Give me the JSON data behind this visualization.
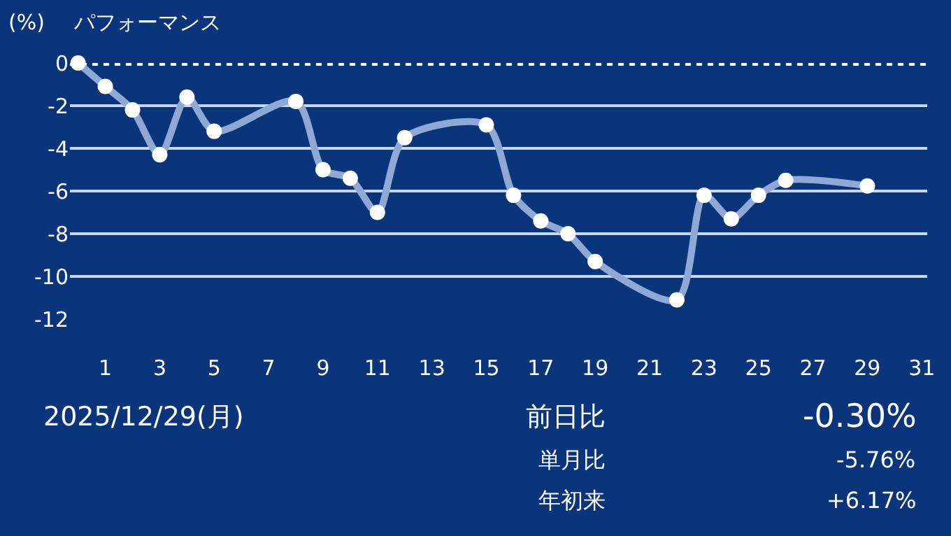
{
  "chart_data": {
    "type": "line",
    "title": "パフォーマンス",
    "ylabel": "(%)",
    "x": [
      0,
      1,
      2,
      3,
      4,
      5,
      8,
      9,
      10,
      11,
      12,
      15,
      16,
      17,
      18,
      19,
      22,
      23,
      24,
      25,
      26,
      29
    ],
    "series": [
      {
        "color": "#8fa9d6",
        "values": [
          0,
          -1.1,
          -2.2,
          -4.3,
          -1.6,
          -3.2,
          -1.8,
          -5.0,
          -5.4,
          -7.0,
          -3.5,
          -2.9,
          -6.2,
          -7.4,
          -8.0,
          -9.3,
          -11.1,
          -6.2,
          -7.3,
          -6.2,
          -5.5,
          -5.76
        ]
      }
    ],
    "xlim": [
      -0.3,
      31.2
    ],
    "xticks": [
      1,
      3,
      5,
      7,
      9,
      11,
      13,
      15,
      17,
      19,
      21,
      23,
      25,
      27,
      29,
      31
    ],
    "ylim": [
      -12,
      0
    ],
    "yticks": [
      0,
      -2,
      -4,
      -6,
      -8,
      -10,
      -12
    ],
    "grid": "y",
    "marker": "circle",
    "line_style": "solid",
    "legend": false,
    "ref_lines": [
      {
        "axis": "y",
        "value": 0,
        "color": "#ffffff",
        "line_style": "dotted"
      }
    ],
    "annotations": [
      "2025/12/29(月)",
      "前日比",
      "-0.30%",
      "単月比",
      "-5.76%",
      "年初来",
      "+6.17%"
    ]
  }
}
